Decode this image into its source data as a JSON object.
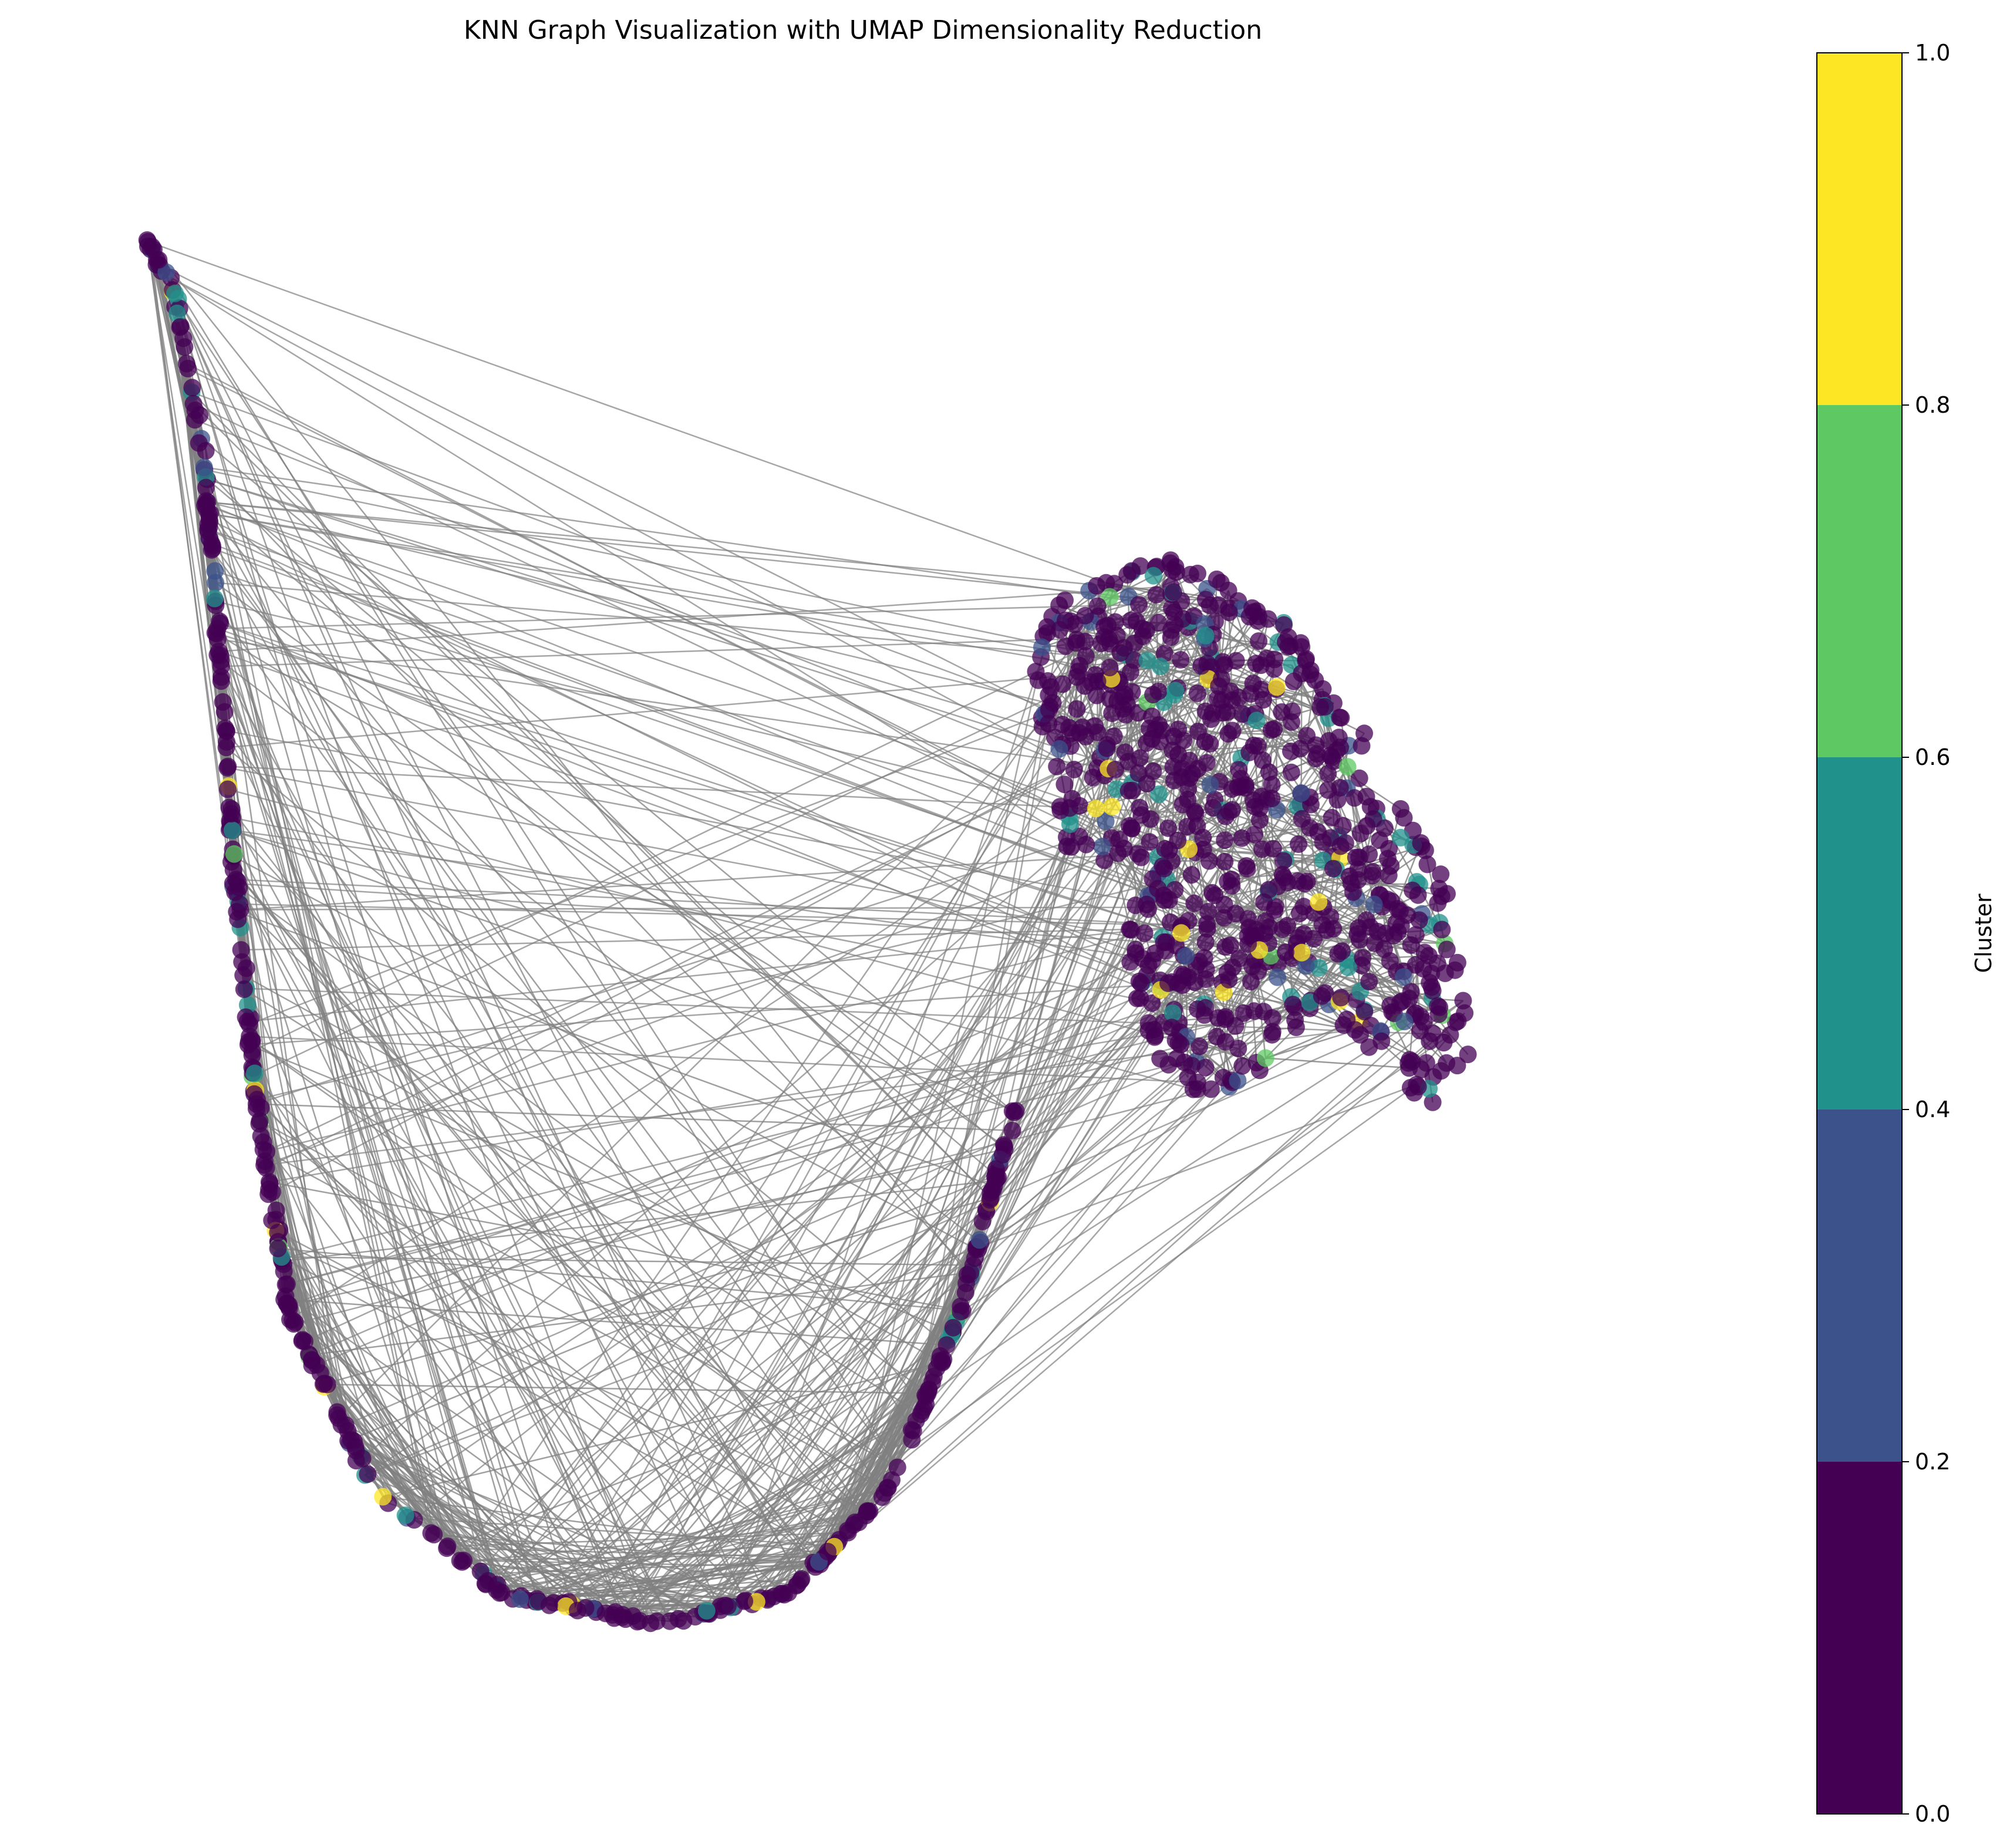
{
  "chart_data": {
    "type": "scatter",
    "title": "KNN Graph Visualization with UMAP Dimensionality Reduction",
    "xlabel": "",
    "ylabel": "",
    "axes_visible": false,
    "edge_color": "#808080",
    "point_alpha": 0.75,
    "colorbar": {
      "label": "Cluster",
      "range": [
        0.0,
        1.0
      ],
      "ticks": [
        "0.0",
        "0.2",
        "0.4",
        "0.6",
        "0.8",
        "1.0"
      ],
      "colormap": "viridis",
      "bins": [
        {
          "from": 0.0,
          "to": 0.2,
          "color": "#440154"
        },
        {
          "from": 0.2,
          "to": 0.4,
          "color": "#3b528b"
        },
        {
          "from": 0.4,
          "to": 0.6,
          "color": "#21918c"
        },
        {
          "from": 0.6,
          "to": 0.8,
          "color": "#5ec962"
        },
        {
          "from": 0.8,
          "to": 1.0,
          "color": "#fde725"
        }
      ]
    },
    "clusters": {
      "u_curve": {
        "description_values": "x,y in relative embedding units (0-1, y up)",
        "path": [
          [
            0.0,
            0.97
          ],
          [
            0.02,
            0.93
          ],
          [
            0.04,
            0.82
          ],
          [
            0.05,
            0.7
          ],
          [
            0.06,
            0.56
          ],
          [
            0.075,
            0.4
          ],
          [
            0.1,
            0.24
          ],
          [
            0.16,
            0.12
          ],
          [
            0.25,
            0.05
          ],
          [
            0.36,
            0.03
          ],
          [
            0.45,
            0.05
          ],
          [
            0.52,
            0.12
          ],
          [
            0.57,
            0.24
          ],
          [
            0.6,
            0.35
          ],
          [
            0.61,
            0.38
          ]
        ],
        "count": 420
      },
      "blob": {
        "outline": [
          [
            0.63,
            0.62
          ],
          [
            0.62,
            0.68
          ],
          [
            0.64,
            0.73
          ],
          [
            0.71,
            0.76
          ],
          [
            0.79,
            0.72
          ],
          [
            0.86,
            0.63
          ],
          [
            0.91,
            0.54
          ],
          [
            0.93,
            0.42
          ],
          [
            0.91,
            0.37
          ],
          [
            0.87,
            0.4
          ],
          [
            0.82,
            0.45
          ],
          [
            0.78,
            0.4
          ],
          [
            0.74,
            0.38
          ],
          [
            0.7,
            0.42
          ],
          [
            0.68,
            0.52
          ],
          [
            0.64,
            0.56
          ]
        ],
        "count": 780
      }
    }
  }
}
